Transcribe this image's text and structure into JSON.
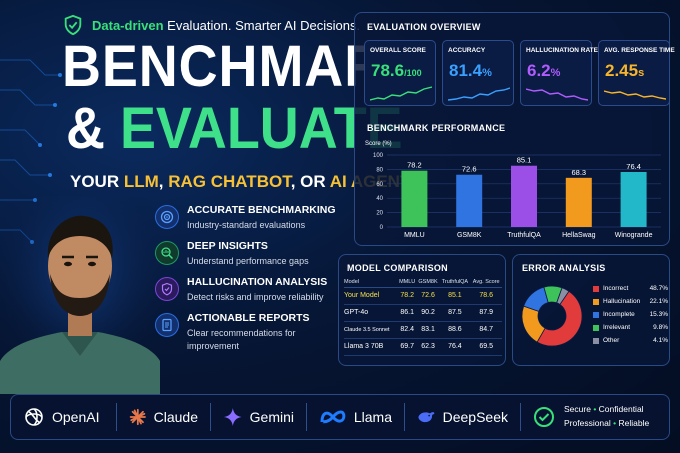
{
  "tagline": {
    "green": "Data-driven",
    "white": "Evaluation. Smarter AI Decisions."
  },
  "title": {
    "line1": "BENCHMARK",
    "amp": "&",
    "line2": "EVALUATE"
  },
  "subtitle": {
    "p1": "YOUR ",
    "p2": "LLM",
    "p3": ", ",
    "p4": "RAG CHATBOT",
    "p5": ", OR ",
    "p6": "AI AGENT"
  },
  "features": [
    {
      "title": "ACCURATE BENCHMARKING",
      "desc": "Industry-standard evaluations",
      "icon": "target-icon",
      "color": "#2b6de0"
    },
    {
      "title": "DEEP INSIGHTS",
      "desc": "Understand performance gaps",
      "icon": "chart-search-icon",
      "color": "#1e9a63"
    },
    {
      "title": "HALLUCINATION ANALYSIS",
      "desc": "Detect risks and improve reliability",
      "icon": "shield-check-icon",
      "color": "#7b47d9"
    },
    {
      "title": "ACTIONABLE REPORTS",
      "desc": "Clear recommendations for improvement",
      "icon": "report-icon",
      "color": "#2b6de0"
    }
  ],
  "overview": {
    "title": "EVALUATION OVERVIEW",
    "kpis": [
      {
        "label": "OVERALL SCORE",
        "value": "78.6",
        "unit": "/100",
        "color": "#39e07a"
      },
      {
        "label": "ACCURACY",
        "value": "81.4",
        "unit": "%",
        "color": "#3aa0ff"
      },
      {
        "label": "HALLUCINATION RATE",
        "value": "6.2",
        "unit": "%",
        "color": "#b05cff"
      },
      {
        "label": "AVG. RESPONSE TIME",
        "value": "2.45",
        "unit": "s",
        "color": "#f7b52b"
      }
    ]
  },
  "chart_data": {
    "type": "bar",
    "title": "BENCHMARK PERFORMANCE",
    "ylabel": "Score (%)",
    "ylim": [
      0,
      100
    ],
    "yticks": [
      "100",
      "80",
      "60",
      "40",
      "20",
      "0"
    ],
    "categories": [
      "MMLU",
      "GSM8K",
      "TruthfulQA",
      "HellaSwag",
      "Winogrande"
    ],
    "values": [
      78.2,
      72.6,
      85.1,
      68.3,
      76.4
    ],
    "value_labels": [
      "78.2",
      "72.6",
      "85.1",
      "68.3",
      "76.4"
    ],
    "colors": [
      "#3ec25a",
      "#2f74e0",
      "#9b4fe6",
      "#f29a1d",
      "#22b8c9"
    ],
    "grid": true
  },
  "model_comparison": {
    "title": "MODEL COMPARISON",
    "columns": [
      "Model",
      "MMLU",
      "GSM8K",
      "TruthfulQA",
      "Avg. Score"
    ],
    "rows": [
      [
        "Your Model",
        "78.2",
        "72.6",
        "85.1",
        "78.6"
      ],
      [
        "GPT-4o",
        "86.1",
        "90.2",
        "87.5",
        "87.9"
      ],
      [
        "Claude 3.5 Sonnet",
        "82.4",
        "83.1",
        "88.6",
        "84.7"
      ],
      [
        "Llama 3 70B",
        "69.7",
        "62.3",
        "76.4",
        "69.5"
      ]
    ]
  },
  "error_analysis": {
    "title": "ERROR ANALYSIS",
    "items": [
      {
        "name": "Incorrect",
        "value": "48.7%",
        "pct": 48.7,
        "color": "#e23b3b"
      },
      {
        "name": "Hallucination",
        "value": "22.1%",
        "pct": 22.1,
        "color": "#f29a1d"
      },
      {
        "name": "Incomplete",
        "value": "15.3%",
        "pct": 15.3,
        "color": "#2f74e0"
      },
      {
        "name": "Irrelevant",
        "value": "9.8%",
        "pct": 9.8,
        "color": "#3ec25a"
      },
      {
        "name": "Other",
        "value": "4.1%",
        "pct": 4.1,
        "color": "#8a8fa3"
      }
    ]
  },
  "brands": [
    {
      "name": "OpenAI",
      "icon": "openai-logo-icon"
    },
    {
      "name": "Claude",
      "icon": "claude-logo-icon"
    },
    {
      "name": "Gemini",
      "icon": "gemini-logo-icon"
    },
    {
      "name": "Llama",
      "icon": "meta-logo-icon"
    },
    {
      "name": "DeepSeek",
      "icon": "deepseek-logo-icon"
    }
  ],
  "badges": {
    "w1": "Secure",
    "w2": "Confidential",
    "w3": "Professional",
    "w4": "Reliable",
    "dot": "•"
  }
}
